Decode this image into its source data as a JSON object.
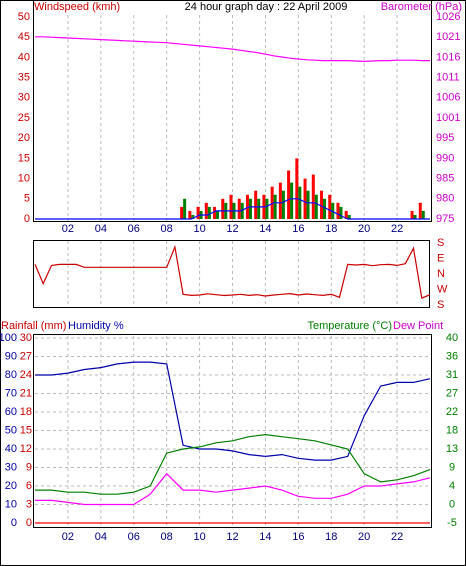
{
  "chart_data": [
    {
      "type": "bar",
      "title": "24 hour graph day : 22 April 2009",
      "ylabel": "Windspeed (kmh)",
      "y2label": "Barometer (hPa)",
      "xlim": [
        0,
        24
      ],
      "xticks": [
        {
          "value": 2,
          "label": "02"
        },
        {
          "value": 4,
          "label": "04"
        },
        {
          "value": 6,
          "label": "06"
        },
        {
          "value": 8,
          "label": "08"
        },
        10,
        12,
        14,
        16,
        18,
        20,
        22
      ],
      "x": [
        0,
        0.5,
        1,
        1.5,
        2,
        2.5,
        3,
        3.5,
        4,
        4.5,
        5,
        5.5,
        6,
        6.5,
        7,
        7.5,
        8,
        8.5,
        9,
        9.5,
        10,
        10.5,
        11,
        11.5,
        12,
        12.5,
        13,
        13.5,
        14,
        14.5,
        15,
        15.5,
        16,
        16.5,
        17,
        17.5,
        18,
        18.5,
        19,
        19.5,
        20,
        20.5,
        21,
        21.5,
        22,
        22.5,
        23,
        23.5,
        24
      ],
      "ylim": [
        0,
        50
      ],
      "yticks": [
        0,
        5,
        10,
        15,
        20,
        25,
        30,
        35,
        40,
        45,
        50
      ],
      "y2lim": [
        975,
        1026
      ],
      "y2ticks": [
        975,
        {
          "value": 980.1,
          "label": "980"
        },
        {
          "value": 985.2,
          "label": "985"
        },
        {
          "value": 990.3,
          "label": "990"
        },
        {
          "value": 995.4,
          "label": "995"
        },
        {
          "value": 1000.5,
          "label": "1001"
        },
        {
          "value": 1005.6,
          "label": "1006"
        },
        {
          "value": 1010.7,
          "label": "1011"
        },
        {
          "value": 1015.8,
          "label": "1016"
        },
        {
          "value": 1020.9,
          "label": "1021"
        },
        1026
      ],
      "grid": true,
      "series": [
        {
          "mark": "bar",
          "color": "#ff0000",
          "values": [
            0,
            0,
            0,
            0,
            0,
            0,
            0,
            0,
            0,
            0,
            0,
            0,
            0,
            0,
            0,
            0,
            0,
            0,
            3,
            2,
            3,
            4,
            3,
            5,
            6,
            5,
            6,
            7,
            6,
            8,
            9,
            12,
            15,
            10,
            11,
            7,
            6,
            4,
            2,
            0,
            0,
            0,
            0,
            0,
            0,
            0,
            2,
            4,
            0
          ]
        },
        {
          "mark": "bar",
          "color": "#008000",
          "values": [
            0,
            0,
            0,
            0,
            0,
            0,
            0,
            0,
            0,
            0,
            0,
            0,
            0,
            0,
            0,
            0,
            0,
            0,
            5,
            1,
            2,
            3,
            2,
            4,
            4,
            4,
            5,
            5,
            5,
            6,
            7,
            9,
            8,
            7,
            6,
            5,
            4,
            3,
            1,
            0,
            0,
            0,
            0,
            0,
            0,
            0,
            1,
            2,
            0
          ]
        },
        {
          "mark": "line",
          "color": "#0000ff",
          "values": [
            0,
            0,
            0,
            0,
            0,
            0,
            0,
            0,
            0,
            0,
            0,
            0,
            0,
            0,
            0,
            0,
            0,
            0,
            0,
            0,
            1,
            1,
            2,
            2,
            2,
            2,
            3,
            3,
            3,
            4,
            4,
            5,
            5,
            4,
            4,
            3,
            2,
            1,
            0,
            0,
            0,
            0,
            0,
            0,
            0,
            0,
            0,
            0,
            0
          ]
        },
        {
          "mark": "line",
          "axis": "y2",
          "color": "#ff00ff",
          "values": [
            1021,
            1021,
            1020.9,
            1020.8,
            1020.7,
            1020.6,
            1020.5,
            1020.4,
            1020.3,
            1020.2,
            1020.1,
            1020,
            1019.9,
            1019.8,
            1019.7,
            1019.6,
            1019.5,
            1019.3,
            1019.1,
            1018.9,
            1018.7,
            1018.5,
            1018.3,
            1018.1,
            1017.9,
            1017.6,
            1017.3,
            1017,
            1016.6,
            1016.2,
            1015.9,
            1015.6,
            1015.4,
            1015.2,
            1015.1,
            1015,
            1015,
            1015,
            1015,
            1014.9,
            1014.8,
            1014.9,
            1015,
            1015,
            1015.1,
            1015.1,
            1015.1,
            1015,
            1015
          ]
        }
      ]
    },
    {
      "type": "line",
      "xlim": [
        0,
        24
      ],
      "x": [
        0,
        0.5,
        1,
        1.5,
        2,
        2.5,
        3,
        3.5,
        4,
        4.5,
        5,
        5.5,
        6,
        6.5,
        7,
        7.5,
        8,
        8.5,
        9,
        9.5,
        10,
        10.5,
        11,
        11.5,
        12,
        12.5,
        13,
        13.5,
        14,
        14.5,
        15,
        15.5,
        16,
        16.5,
        17,
        17.5,
        18,
        18.5,
        19,
        19.5,
        20,
        20.5,
        21,
        21.5,
        22,
        22.5,
        23,
        23.5,
        24
      ],
      "ylim": [
        0,
        360
      ],
      "yticks": [
        {
          "value": 0,
          "label": "S"
        },
        {
          "value": 90,
          "label": "W"
        },
        {
          "value": 180,
          "label": "N"
        },
        {
          "value": 270,
          "label": "E"
        },
        {
          "value": 360,
          "label": "S"
        }
      ],
      "grid": true,
      "series": [
        {
          "color": "#cc0000",
          "values": [
            236,
            124,
            230,
            236,
            236,
            236,
            219,
            219,
            219,
            219,
            219,
            219,
            219,
            219,
            219,
            219,
            219,
            337,
            62,
            56,
            58,
            65,
            60,
            55,
            58,
            62,
            56,
            60,
            52,
            58,
            62,
            66,
            58,
            64,
            60,
            56,
            62,
            45,
            236,
            232,
            236,
            228,
            234,
            236,
            230,
            240,
            330,
            40,
            60
          ]
        }
      ]
    },
    {
      "type": "line",
      "xlim": [
        0,
        24
      ],
      "xticks": [
        {
          "value": 2,
          "label": "02"
        },
        {
          "value": 4,
          "label": "04"
        },
        {
          "value": 6,
          "label": "06"
        },
        {
          "value": 8,
          "label": "08"
        },
        10,
        12,
        14,
        16,
        18,
        20,
        22
      ],
      "x": [
        0,
        1,
        2,
        3,
        4,
        5,
        6,
        7,
        8,
        9,
        10,
        11,
        12,
        13,
        14,
        15,
        16,
        17,
        18,
        19,
        20,
        21,
        22,
        23,
        24
      ],
      "ylim": [
        0,
        100
      ],
      "yticks": [
        0,
        10,
        20,
        30,
        40,
        50,
        60,
        70,
        80,
        90,
        100
      ],
      "y3lim": [
        0,
        30
      ],
      "y3ticks": [
        0,
        3,
        6,
        9,
        12,
        15,
        18,
        21,
        24,
        27,
        30
      ],
      "y2lim": [
        -5,
        40
      ],
      "y2ticks": [
        -5,
        {
          "value": -0.5,
          "label": "0"
        },
        4,
        {
          "value": 8.5,
          "label": "9"
        },
        13,
        {
          "value": 17.5,
          "label": "18"
        },
        22,
        {
          "value": 26.5,
          "label": "27"
        },
        31,
        {
          "value": 35.5,
          "label": "36"
        },
        40
      ],
      "grid": true,
      "series": [
        {
          "name": "Rainfall (mm)",
          "axis": "y3",
          "color": "#ff0000",
          "values": [
            0,
            0,
            0,
            0,
            0,
            0,
            0,
            0,
            0,
            0,
            0,
            0,
            0,
            0,
            0,
            0,
            0,
            0,
            0,
            0,
            0,
            0,
            0,
            0,
            0
          ]
        },
        {
          "name": "Humidity %",
          "color": "#0000aa",
          "values": [
            80,
            80,
            81,
            83,
            84,
            86,
            87,
            87,
            86,
            42,
            40,
            40,
            39,
            37,
            36,
            37,
            35,
            34,
            34,
            36,
            58,
            74,
            76,
            76,
            78
          ]
        },
        {
          "name": "Temperature (°C)",
          "axis": "y2",
          "color": "#008000",
          "values": [
            3,
            3,
            2.5,
            2.5,
            2,
            2,
            2.5,
            4,
            12,
            13,
            13.5,
            14.5,
            15,
            16,
            16.5,
            16,
            15.5,
            15,
            14,
            13,
            7,
            5,
            5.5,
            6.5,
            8
          ]
        },
        {
          "name": "Dew Point",
          "axis": "y2",
          "color": "#ff00ff",
          "values": [
            0.5,
            0.5,
            0,
            -0.5,
            -0.5,
            -0.5,
            -0.5,
            2,
            7,
            3,
            3,
            2.5,
            3,
            3.5,
            4,
            3,
            1.5,
            1,
            1,
            2,
            4,
            4,
            4.5,
            5,
            6
          ]
        }
      ]
    }
  ]
}
